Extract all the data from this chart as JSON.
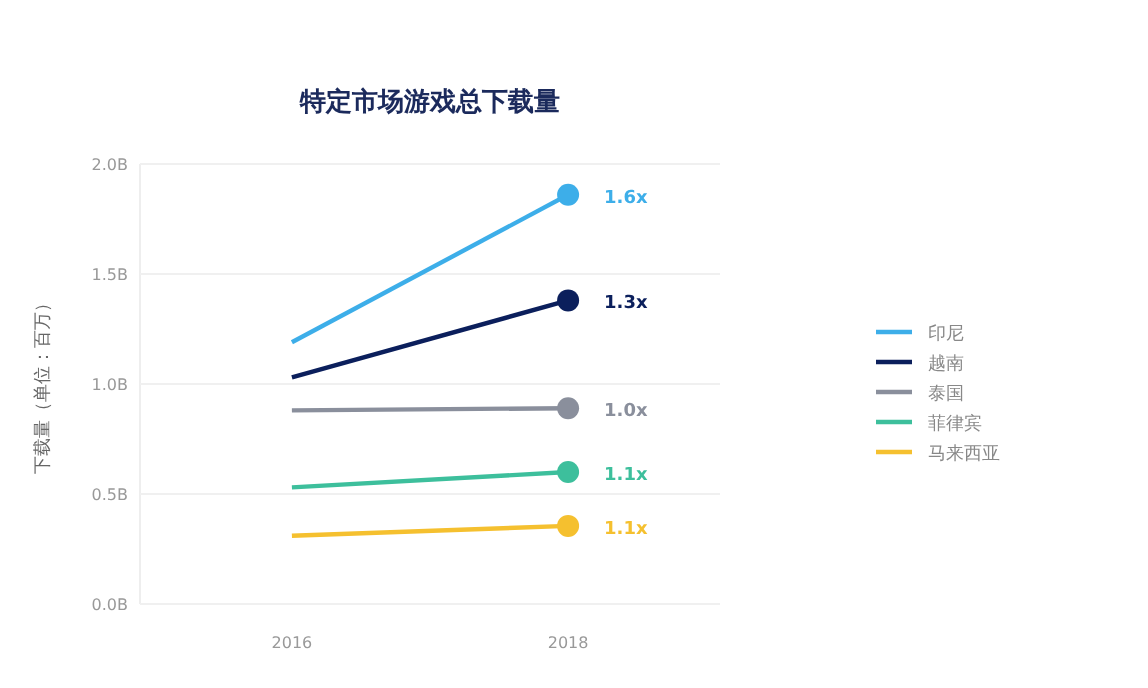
{
  "chart_data": {
    "type": "line",
    "title": "特定市场游戏总下载量",
    "ylabel": "下载量（单位：百万）",
    "categories": [
      "2016",
      "2018"
    ],
    "series": [
      {
        "name": "印尼",
        "color": "#3daee9",
        "values": [
          1.19,
          1.86
        ]
      },
      {
        "name": "越南",
        "color": "#0b1f5c",
        "values": [
          1.03,
          1.38
        ]
      },
      {
        "name": "泰国",
        "color": "#8a8f9c",
        "values": [
          0.88,
          0.89
        ]
      },
      {
        "name": "菲律宾",
        "color": "#3dbf9c",
        "values": [
          0.53,
          0.6
        ]
      },
      {
        "name": "马来西亚",
        "color": "#f5c02f",
        "values": [
          0.31,
          0.355
        ]
      }
    ],
    "ylim": [
      0,
      2
    ],
    "yticks": [
      {
        "value": 0,
        "label": "0.0B"
      },
      {
        "value": 0.5,
        "label": "0.5B"
      },
      {
        "value": 1,
        "label": "1.0B"
      },
      {
        "value": 1.5,
        "label": "1.5B"
      },
      {
        "value": 2,
        "label": "2.0B"
      }
    ],
    "annotations": [
      {
        "text": "1.6x",
        "x": "2018",
        "y": 1.86
      },
      {
        "text": "1.3x",
        "x": "2018",
        "y": 1.38
      },
      {
        "text": "1.0x",
        "x": "2018",
        "y": 0.89
      },
      {
        "text": "1.1x",
        "x": "2018",
        "y": 0.6
      },
      {
        "text": "1.1x",
        "x": "2018",
        "y": 0.355
      }
    ],
    "grid": "y",
    "legend": "right",
    "marker": "circle",
    "line_style": "solid"
  }
}
